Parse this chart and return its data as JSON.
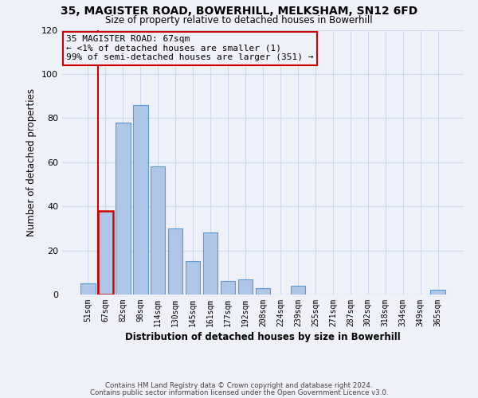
{
  "title_line1": "35, MAGISTER ROAD, BOWERHILL, MELKSHAM, SN12 6FD",
  "title_line2": "Size of property relative to detached houses in Bowerhill",
  "xlabel": "Distribution of detached houses by size in Bowerhill",
  "ylabel": "Number of detached properties",
  "bar_labels": [
    "51sqm",
    "67sqm",
    "82sqm",
    "98sqm",
    "114sqm",
    "130sqm",
    "145sqm",
    "161sqm",
    "177sqm",
    "192sqm",
    "208sqm",
    "224sqm",
    "239sqm",
    "255sqm",
    "271sqm",
    "287sqm",
    "302sqm",
    "318sqm",
    "334sqm",
    "349sqm",
    "365sqm"
  ],
  "bar_values": [
    5,
    38,
    78,
    86,
    58,
    30,
    15,
    28,
    6,
    7,
    3,
    0,
    4,
    0,
    0,
    0,
    0,
    0,
    0,
    0,
    2
  ],
  "bar_color": "#aec6e8",
  "bar_edge_color": "#5b9bd5",
  "highlight_bar_index": 1,
  "highlight_bar_edge_color": "#cc0000",
  "annotation_box_text": "35 MAGISTER ROAD: 67sqm\n← <1% of detached houses are smaller (1)\n99% of semi-detached houses are larger (351) →",
  "annotation_box_edge_color": "#cc0000",
  "ylim": [
    0,
    120
  ],
  "yticks": [
    0,
    20,
    40,
    60,
    80,
    100,
    120
  ],
  "footer_line1": "Contains HM Land Registry data © Crown copyright and database right 2024.",
  "footer_line2": "Contains public sector information licensed under the Open Government Licence v3.0.",
  "grid_color": "#cdd8ea",
  "background_color": "#eef2f8"
}
